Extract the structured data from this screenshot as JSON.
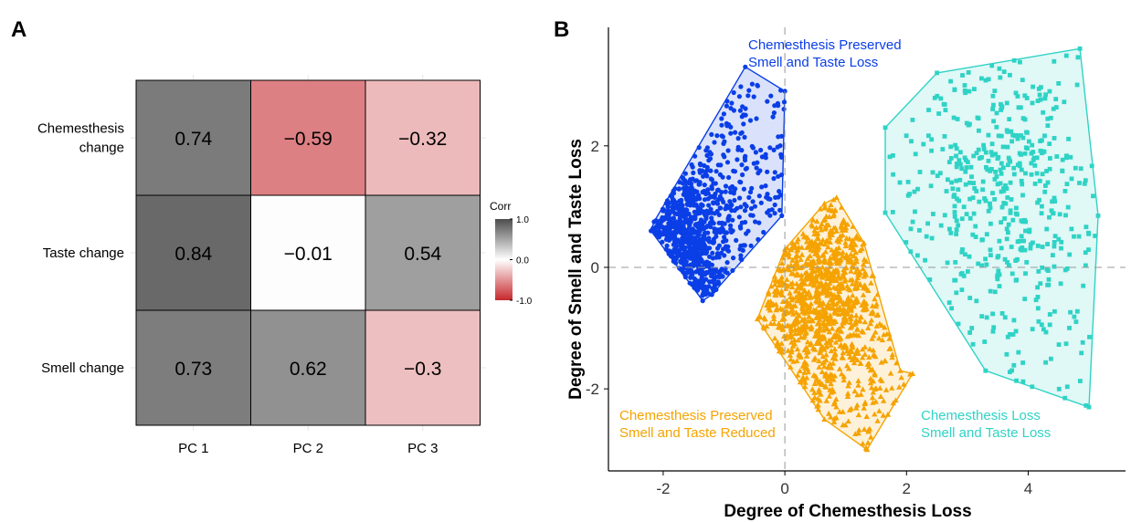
{
  "panel_a_label": "A",
  "panel_b_label": "B",
  "colors": {
    "heat_high": "#4d4d4d",
    "heat_mid": "#ffffff",
    "heat_low": "#c6282c",
    "cluster_blue": "#0a3ee6",
    "cluster_orange": "#f5a300",
    "cluster_teal": "#2fd3c5"
  },
  "chart_data": [
    {
      "type": "heatmap",
      "rows": [
        "Chemesthesis change",
        "Taste change",
        "Smell change"
      ],
      "row_label_lines": [
        [
          "Chemesthesis",
          "change"
        ],
        [
          "Taste change"
        ],
        [
          "Smell change"
        ]
      ],
      "columns": [
        "PC 1",
        "PC 2",
        "PC 3"
      ],
      "values": [
        [
          0.74,
          -0.59,
          -0.32
        ],
        [
          0.84,
          -0.01,
          0.54
        ],
        [
          0.73,
          0.62,
          -0.3
        ]
      ],
      "value_labels": [
        [
          "0.74",
          "−0.59",
          "−0.32"
        ],
        [
          "0.84",
          "−0.01",
          "0.54"
        ],
        [
          "0.73",
          "0.62",
          "−0.3"
        ]
      ],
      "legend": {
        "title": "Corr",
        "range": [
          -1.0,
          1.0
        ],
        "ticks": [
          1.0,
          0.0,
          -1.0
        ],
        "tick_labels": [
          "1.0",
          "0.0",
          "-1.0"
        ],
        "position": "right"
      }
    },
    {
      "type": "scatter",
      "xlabel": "Degree of Chemesthesis Loss",
      "ylabel": "Degree of Smell and Taste Loss",
      "xlim": [
        -2.9,
        5.6
      ],
      "ylim": [
        -3.35,
        3.95
      ],
      "xticks": [
        -2,
        0,
        2,
        4
      ],
      "xtick_labels": [
        "-2",
        "0",
        "2",
        "4"
      ],
      "yticks": [
        -2,
        0,
        2
      ],
      "ytick_labels": [
        "-2",
        "0",
        "2"
      ],
      "reference_lines": {
        "x": 0,
        "y": 0,
        "style": "dashed"
      },
      "grid": false,
      "series": [
        {
          "label_lines": [
            "Chemesthesis Preserved",
            "Smell and Taste Loss"
          ],
          "marker": "circle",
          "color": "#0a3ee6",
          "hull": [
            [
              -0.65,
              3.3
            ],
            [
              0.0,
              2.9
            ],
            [
              -0.05,
              0.85
            ],
            [
              -1.2,
              -0.45
            ],
            [
              -1.35,
              -0.55
            ],
            [
              -2.2,
              0.6
            ],
            [
              -2.15,
              0.75
            ]
          ],
          "dense_center": [
            -1.7,
            0.35
          ],
          "count": 900
        },
        {
          "label_lines": [
            "Chemesthesis Preserved",
            "Smell and Taste Reduced"
          ],
          "marker": "triangle",
          "color": "#f5a300",
          "hull": [
            [
              0.85,
              1.15
            ],
            [
              1.3,
              0.4
            ],
            [
              1.9,
              -1.7
            ],
            [
              2.1,
              -1.75
            ],
            [
              1.35,
              -3.0
            ],
            [
              0.65,
              -2.5
            ],
            [
              -0.45,
              -0.85
            ],
            [
              0.0,
              0.3
            ],
            [
              0.65,
              1.05
            ]
          ],
          "dense_center": [
            0.6,
            -0.5
          ],
          "count": 1100
        },
        {
          "label_lines": [
            "Chemesthesis Loss",
            "Smell and Taste Loss"
          ],
          "marker": "square",
          "color": "#2fd3c5",
          "hull": [
            [
              2.5,
              3.2
            ],
            [
              4.85,
              3.6
            ],
            [
              5.15,
              0.85
            ],
            [
              5.0,
              -2.3
            ],
            [
              3.3,
              -1.7
            ],
            [
              1.65,
              0.9
            ],
            [
              1.65,
              2.3
            ]
          ],
          "dense_center": [
            3.6,
            1.3
          ],
          "count": 500
        }
      ]
    }
  ]
}
